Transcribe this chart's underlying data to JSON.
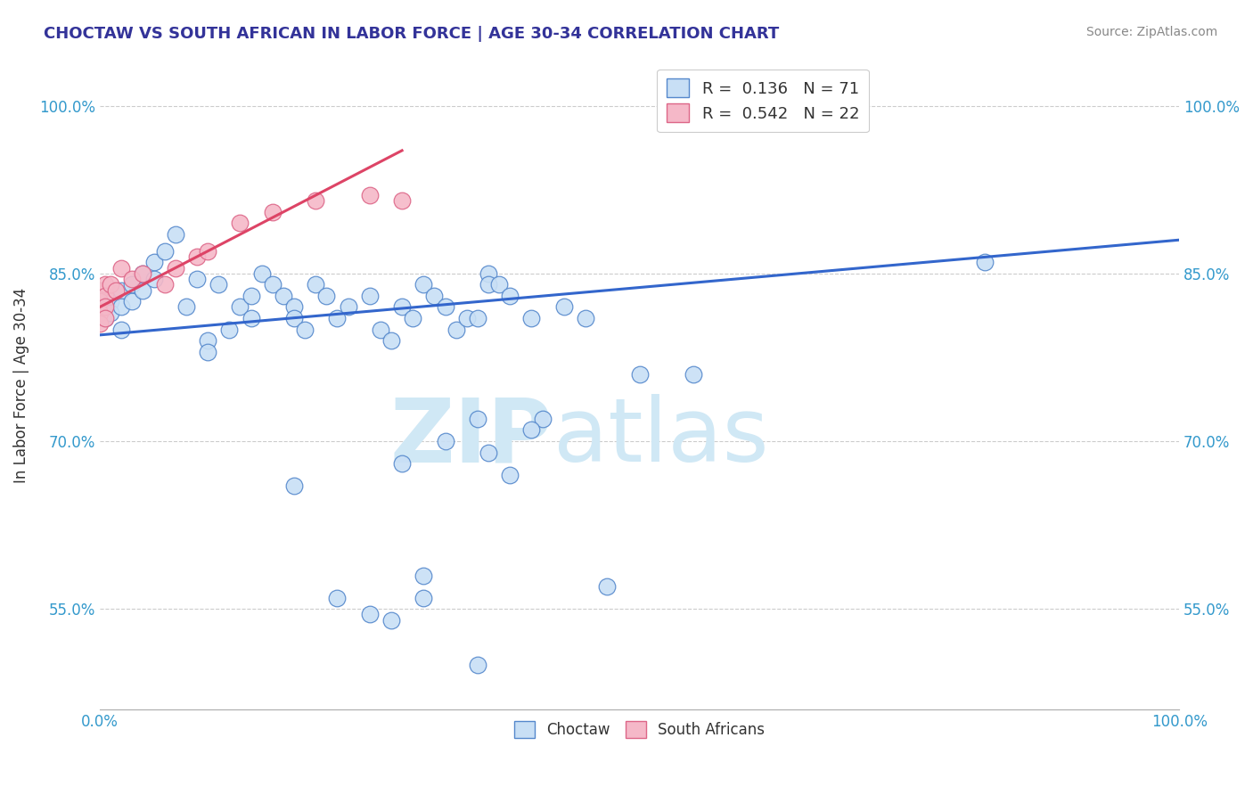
{
  "title": "CHOCTAW VS SOUTH AFRICAN IN LABOR FORCE | AGE 30-34 CORRELATION CHART",
  "source": "Source: ZipAtlas.com",
  "ylabel": "In Labor Force | Age 30-34",
  "xlim": [
    0.0,
    1.0
  ],
  "ylim": [
    0.46,
    1.04
  ],
  "y_ticks": [
    0.55,
    0.7,
    0.85,
    1.0
  ],
  "y_tick_labels": [
    "55.0%",
    "70.0%",
    "85.0%",
    "100.0%"
  ],
  "x_ticks": [
    0.0,
    1.0
  ],
  "x_tick_labels": [
    "0.0%",
    "100.0%"
  ],
  "grid_color": "#cccccc",
  "background_color": "#ffffff",
  "legend_R_blue": "0.136",
  "legend_N_blue": "71",
  "legend_R_pink": "0.542",
  "legend_N_pink": "22",
  "blue_face": "#c8dff5",
  "blue_edge": "#5588cc",
  "pink_face": "#f5b8c8",
  "pink_edge": "#dd6688",
  "blue_line": "#3366cc",
  "pink_line": "#dd4466",
  "choctaw_x": [
    0.005,
    0.005,
    0.005,
    0.01,
    0.01,
    0.02,
    0.02,
    0.02,
    0.03,
    0.03,
    0.04,
    0.04,
    0.05,
    0.05,
    0.06,
    0.07,
    0.08,
    0.09,
    0.1,
    0.1,
    0.11,
    0.12,
    0.13,
    0.14,
    0.14,
    0.15,
    0.16,
    0.17,
    0.18,
    0.18,
    0.19,
    0.2,
    0.21,
    0.22,
    0.23,
    0.25,
    0.26,
    0.27,
    0.28,
    0.29,
    0.3,
    0.31,
    0.32,
    0.33,
    0.34,
    0.35,
    0.36,
    0.36,
    0.37,
    0.38,
    0.4,
    0.41,
    0.43,
    0.45,
    0.47,
    0.3,
    0.35,
    0.38,
    0.18,
    0.28,
    0.32,
    0.36,
    0.4,
    0.22,
    0.25,
    0.27,
    0.3,
    0.35,
    0.82,
    0.5,
    0.55
  ],
  "choctaw_y": [
    0.83,
    0.82,
    0.81,
    0.825,
    0.815,
    0.835,
    0.82,
    0.8,
    0.84,
    0.825,
    0.85,
    0.835,
    0.86,
    0.845,
    0.87,
    0.885,
    0.82,
    0.845,
    0.79,
    0.78,
    0.84,
    0.8,
    0.82,
    0.83,
    0.81,
    0.85,
    0.84,
    0.83,
    0.82,
    0.81,
    0.8,
    0.84,
    0.83,
    0.81,
    0.82,
    0.83,
    0.8,
    0.79,
    0.82,
    0.81,
    0.84,
    0.83,
    0.82,
    0.8,
    0.81,
    0.81,
    0.85,
    0.84,
    0.84,
    0.83,
    0.81,
    0.72,
    0.82,
    0.81,
    0.57,
    0.58,
    0.72,
    0.67,
    0.66,
    0.68,
    0.7,
    0.69,
    0.71,
    0.56,
    0.545,
    0.54,
    0.56,
    0.5,
    0.86,
    0.76,
    0.76
  ],
  "sa_x": [
    0.0,
    0.0,
    0.0,
    0.0,
    0.005,
    0.005,
    0.005,
    0.005,
    0.01,
    0.015,
    0.02,
    0.03,
    0.04,
    0.06,
    0.07,
    0.09,
    0.1,
    0.13,
    0.16,
    0.2,
    0.25,
    0.28
  ],
  "sa_y": [
    0.835,
    0.825,
    0.815,
    0.805,
    0.84,
    0.83,
    0.82,
    0.81,
    0.84,
    0.835,
    0.855,
    0.845,
    0.85,
    0.84,
    0.855,
    0.865,
    0.87,
    0.895,
    0.905,
    0.915,
    0.92,
    0.915
  ],
  "watermark_text": "ZIPatlas",
  "watermark_color": "#d0e8f5",
  "tick_color": "#3399cc",
  "title_color": "#333399",
  "source_color": "#888888",
  "ylabel_color": "#333333"
}
